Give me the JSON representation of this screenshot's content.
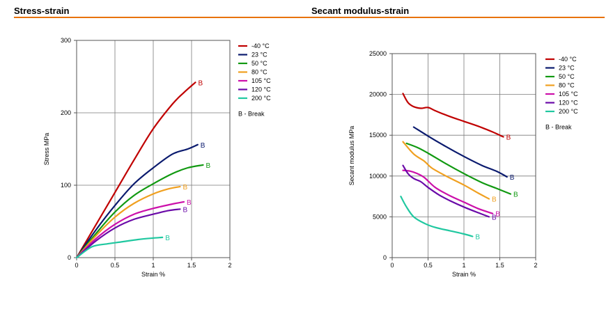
{
  "header": {
    "left_title": "Stress-strain",
    "right_title": "Secant modulus-strain",
    "rule_color": "#e8720c"
  },
  "series_colors": [
    "#c00000",
    "#0a1a6e",
    "#119911",
    "#f0a020",
    "#cc10aa",
    "#6a0aa8",
    "#20c8a0"
  ],
  "chart_data": [
    {
      "type": "line",
      "title": "",
      "xlabel": "Strain  %",
      "ylabel": "Stress  MPa",
      "xlim": [
        0,
        2
      ],
      "ylim": [
        0,
        300
      ],
      "xticks": [
        0,
        0.5,
        1,
        1.5,
        2
      ],
      "xtick_labels": [
        "0",
        "0.5",
        "1",
        "1.5",
        "2"
      ],
      "yticks": [
        0,
        100,
        200,
        300
      ],
      "ytick_labels": [
        "0",
        "100",
        "200",
        "300"
      ],
      "grid": true,
      "legend_position": "right",
      "legend_note": "B - Break",
      "end_marker": "B",
      "series": [
        {
          "name": "-40 °C",
          "x": [
            0,
            0.25,
            0.5,
            0.75,
            1.0,
            1.25,
            1.4,
            1.55
          ],
          "y": [
            0,
            45,
            90,
            135,
            178,
            212,
            228,
            242
          ]
        },
        {
          "name": " 23 °C",
          "x": [
            0,
            0.25,
            0.5,
            0.75,
            1.0,
            1.25,
            1.45,
            1.58
          ],
          "y": [
            0,
            38,
            72,
            102,
            124,
            143,
            150,
            156
          ]
        },
        {
          "name": " 50 °C",
          "x": [
            0,
            0.25,
            0.5,
            0.75,
            1.0,
            1.25,
            1.45,
            1.65
          ],
          "y": [
            0,
            33,
            63,
            86,
            102,
            116,
            124,
            128
          ]
        },
        {
          "name": " 80 °C",
          "x": [
            0,
            0.25,
            0.5,
            0.75,
            1.0,
            1.2,
            1.35
          ],
          "y": [
            0,
            30,
            56,
            75,
            88,
            95,
            98
          ]
        },
        {
          "name": "105 °C",
          "x": [
            0,
            0.25,
            0.5,
            0.75,
            1.0,
            1.25,
            1.4
          ],
          "y": [
            0,
            26,
            46,
            60,
            68,
            74,
            77
          ]
        },
        {
          "name": "120 °C",
          "x": [
            0,
            0.25,
            0.5,
            0.75,
            1.0,
            1.2,
            1.35
          ],
          "y": [
            0,
            23,
            41,
            53,
            60,
            65,
            67
          ]
        },
        {
          "name": "200 °C",
          "x": [
            0,
            0.2,
            0.4,
            0.6,
            0.8,
            1.0,
            1.12
          ],
          "y": [
            0,
            15,
            19,
            22,
            25,
            27,
            28
          ]
        }
      ]
    },
    {
      "type": "line",
      "title": "",
      "xlabel": "Strain  %",
      "ylabel": "Secant modulus  MPa",
      "xlim": [
        0,
        2
      ],
      "ylim": [
        0,
        25000
      ],
      "xticks": [
        0,
        0.5,
        1,
        1.5,
        2
      ],
      "xtick_labels": [
        "0",
        "0.5",
        "1",
        "1.5",
        "2"
      ],
      "yticks": [
        0,
        5000,
        10000,
        15000,
        20000,
        25000
      ],
      "ytick_labels": [
        "0",
        "5000",
        "10000",
        "15000",
        "20000",
        "25000"
      ],
      "grid": true,
      "legend_position": "right",
      "legend_note": "B - Break",
      "end_marker": "B",
      "series": [
        {
          "name": "-40 °C",
          "x": [
            0.15,
            0.22,
            0.3,
            0.4,
            0.5,
            0.6,
            0.8,
            1.0,
            1.2,
            1.4,
            1.55
          ],
          "y": [
            20100,
            19000,
            18500,
            18300,
            18400,
            18000,
            17300,
            16700,
            16100,
            15400,
            14800
          ]
        },
        {
          "name": " 23 °C",
          "x": [
            0.3,
            0.5,
            0.75,
            1.0,
            1.25,
            1.45,
            1.6
          ],
          "y": [
            16000,
            14900,
            13600,
            12400,
            11300,
            10600,
            9900
          ]
        },
        {
          "name": " 50 °C",
          "x": [
            0.2,
            0.35,
            0.5,
            0.75,
            1.0,
            1.25,
            1.45,
            1.65
          ],
          "y": [
            14000,
            13500,
            12800,
            11500,
            10300,
            9200,
            8500,
            7800
          ]
        },
        {
          "name": " 80 °C",
          "x": [
            0.15,
            0.3,
            0.45,
            0.55,
            0.75,
            1.0,
            1.2,
            1.35
          ],
          "y": [
            14200,
            12700,
            11800,
            11000,
            10000,
            8900,
            7900,
            7200
          ]
        },
        {
          "name": "105 °C",
          "x": [
            0.15,
            0.25,
            0.35,
            0.45,
            0.6,
            0.8,
            1.0,
            1.2,
            1.4
          ],
          "y": [
            10700,
            10600,
            10300,
            9800,
            8600,
            7600,
            6800,
            6000,
            5400
          ]
        },
        {
          "name": "120 °C",
          "x": [
            0.15,
            0.22,
            0.3,
            0.4,
            0.5,
            0.65,
            0.8,
            1.0,
            1.2,
            1.35
          ],
          "y": [
            11300,
            10300,
            9700,
            9300,
            8600,
            7700,
            7000,
            6200,
            5500,
            5000
          ]
        },
        {
          "name": "200 °C",
          "x": [
            0.12,
            0.2,
            0.3,
            0.45,
            0.6,
            0.8,
            1.0,
            1.12
          ],
          "y": [
            7500,
            6200,
            5000,
            4200,
            3700,
            3300,
            2900,
            2600
          ]
        }
      ]
    }
  ]
}
